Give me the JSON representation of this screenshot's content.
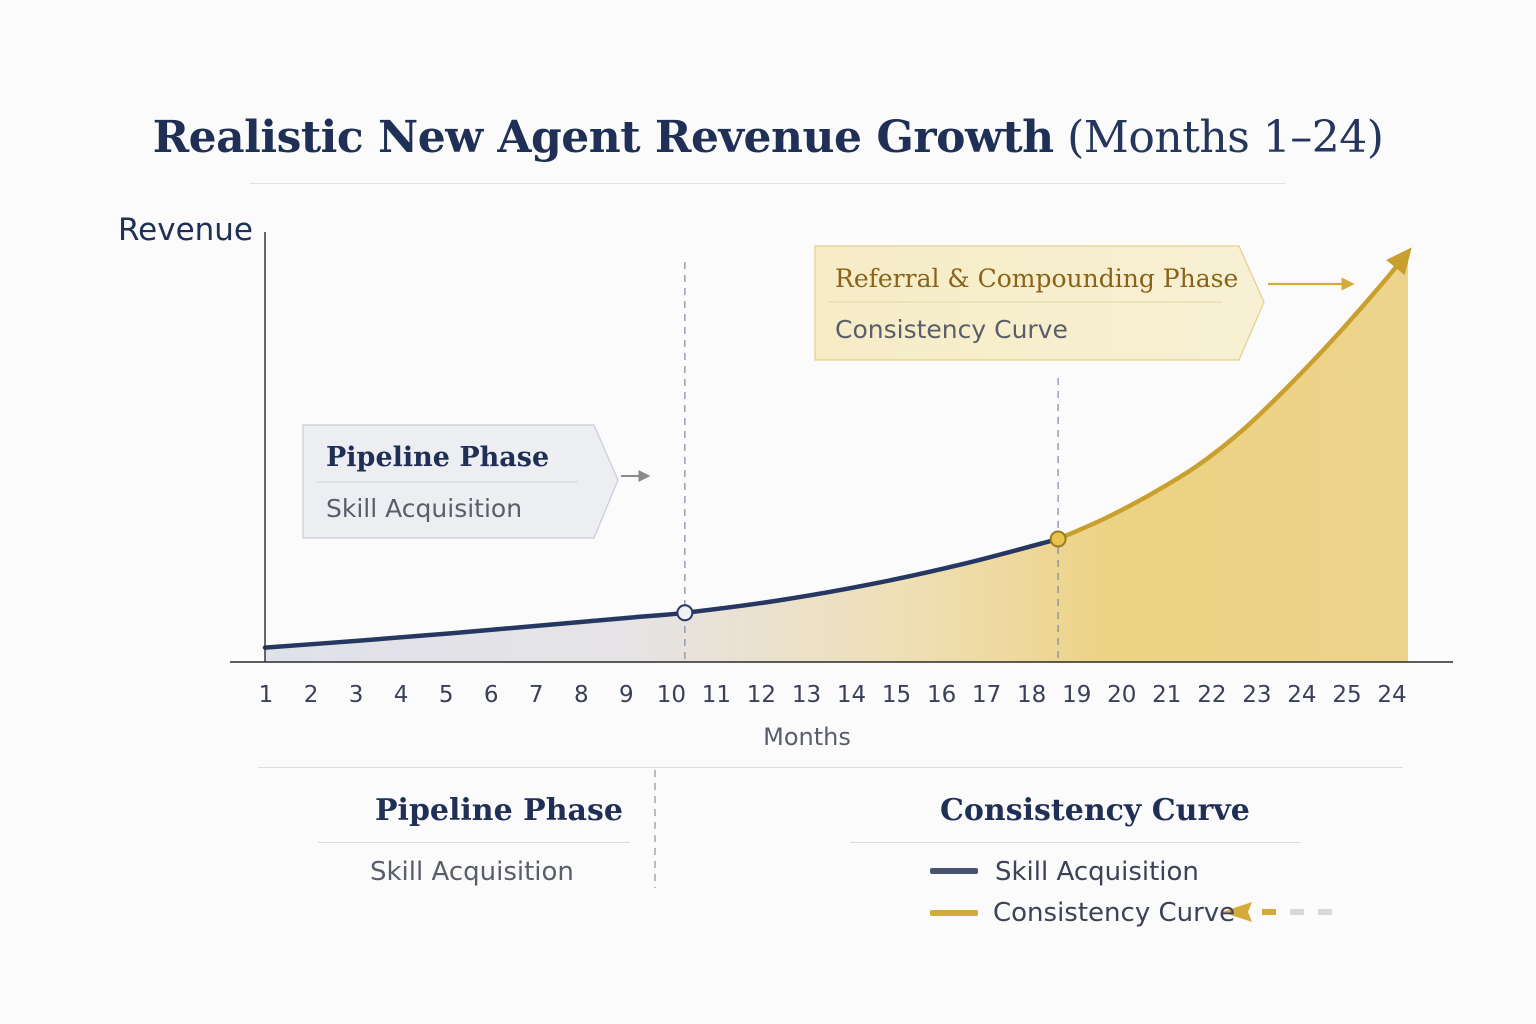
{
  "colors": {
    "navy": "#263862",
    "gold": "#c9a02e",
    "gold_light": "#ecd286",
    "gray_arrow": "#8a8a8a"
  },
  "chart_data": {
    "type": "area",
    "title": "Realistic New Agent Revenue Growth",
    "subtitle": "(Months 1–24)",
    "ylabel": "Revenue",
    "xlabel": "Months",
    "x_tick_labels": [
      "1",
      "2",
      "3",
      "4",
      "5",
      "6",
      "7",
      "8",
      "9",
      "10",
      "11",
      "12",
      "13",
      "14",
      "15",
      "16",
      "17",
      "18",
      "19",
      "20",
      "21",
      "22",
      "23",
      "24",
      "25",
      "24"
    ],
    "grid": false,
    "series": [
      {
        "name": "Skill Acquisition",
        "color": "#263862",
        "x": [
          1,
          3,
          5,
          7,
          9,
          10,
          12,
          14,
          16,
          18
        ],
        "y": [
          0.035,
          0.052,
          0.07,
          0.09,
          0.11,
          0.12,
          0.15,
          0.19,
          0.24,
          0.3
        ]
      },
      {
        "name": "Consistency Curve",
        "color": "#c9a02e",
        "x": [
          18,
          19,
          20,
          21,
          22,
          23,
          24,
          25,
          25.5
        ],
        "y": [
          0.3,
          0.35,
          0.41,
          0.48,
          0.57,
          0.68,
          0.8,
          0.93,
          1.0
        ]
      }
    ],
    "markers": [
      {
        "x": 10,
        "y": 0.12,
        "color": "#263862"
      },
      {
        "x": 18,
        "y": 0.3,
        "color": "#c9a02e"
      }
    ],
    "phase_dividers": [
      10,
      18
    ],
    "annotations": [
      {
        "title": "Pipeline Phase",
        "subtitle": "Skill Acquisition"
      },
      {
        "title": "Referral & Compounding Phase",
        "subtitle": "Consistency Curve"
      }
    ]
  },
  "bottom": {
    "left_title": "Pipeline Phase",
    "left_sub": "Skill Acquisition",
    "right_title": "Consistency Curve",
    "legend": [
      {
        "label": "Skill Acquisition",
        "color": "#4a5370"
      },
      {
        "label": "Consistency Curve",
        "color": "#d4aa3a"
      }
    ]
  }
}
